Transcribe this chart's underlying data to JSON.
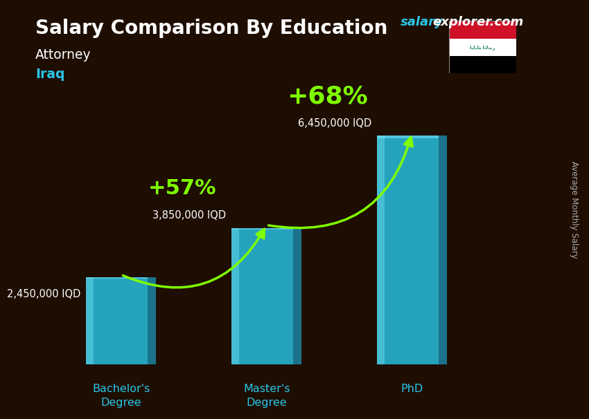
{
  "title": "Salary Comparison By Education",
  "subtitle_job": "Attorney",
  "subtitle_country": "Iraq",
  "watermark_salary": "salary",
  "watermark_rest": "explorer.com",
  "ylabel": "Average Monthly Salary",
  "categories": [
    "Bachelor's\nDegree",
    "Master's\nDegree",
    "PhD"
  ],
  "values": [
    2450000,
    3850000,
    6450000
  ],
  "value_labels": [
    "2,450,000 IQD",
    "3,850,000 IQD",
    "6,450,000 IQD"
  ],
  "bar_color": "#29c5e6",
  "bar_side_color": "#1a8aaa",
  "bar_alpha": 0.82,
  "bg_color": "#2a1505",
  "title_color": "#ffffff",
  "subtitle_job_color": "#ffffff",
  "subtitle_country_color": "#29c5e6",
  "value_label_color": "#ffffff",
  "arrow_color": "#7fff00",
  "pct_label_color": "#7fff00",
  "pct_labels": [
    "+57%",
    "+68%"
  ],
  "watermark_salary_color": "#29c5e6",
  "watermark_rest_color": "#ffffff",
  "xticklabel_color": "#29c5e6",
  "ylabel_color": "#aaaaaa",
  "bar_width": 0.42,
  "bar_depth": 0.06,
  "ylim": [
    0,
    8500000
  ],
  "xlim": [
    -0.6,
    2.8
  ],
  "fig_bg": "#1e0e02"
}
